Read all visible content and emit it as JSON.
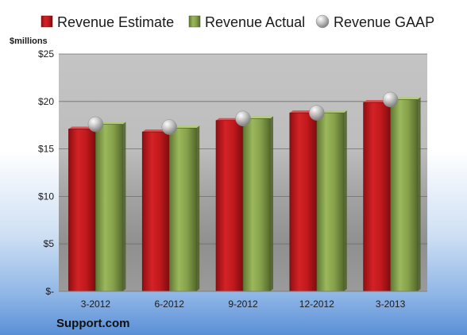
{
  "chart_data": {
    "type": "bar",
    "unit_label": "$millions",
    "categories": [
      "3-2012",
      "6-2012",
      "9-2012",
      "12-2012",
      "3-2013"
    ],
    "series": [
      {
        "name": "Revenue Estimate",
        "kind": "bar",
        "color": "#c0191c",
        "values": [
          17.1,
          16.8,
          18.0,
          18.8,
          19.9
        ]
      },
      {
        "name": "Revenue Actual",
        "kind": "bar",
        "color": "#86a14b",
        "values": [
          17.6,
          17.2,
          18.2,
          18.8,
          20.2
        ]
      },
      {
        "name": "Revenue GAAP",
        "kind": "marker",
        "color": "#b0b0b0",
        "values": [
          17.6,
          17.3,
          18.2,
          18.8,
          20.2
        ]
      }
    ],
    "y_ticks": [
      "$-",
      "$5",
      "$10",
      "$15",
      "$20",
      "$25"
    ],
    "ylim": [
      0,
      25
    ],
    "grid": true,
    "legend_position": "top"
  },
  "footer": {
    "company": "Support.com"
  }
}
